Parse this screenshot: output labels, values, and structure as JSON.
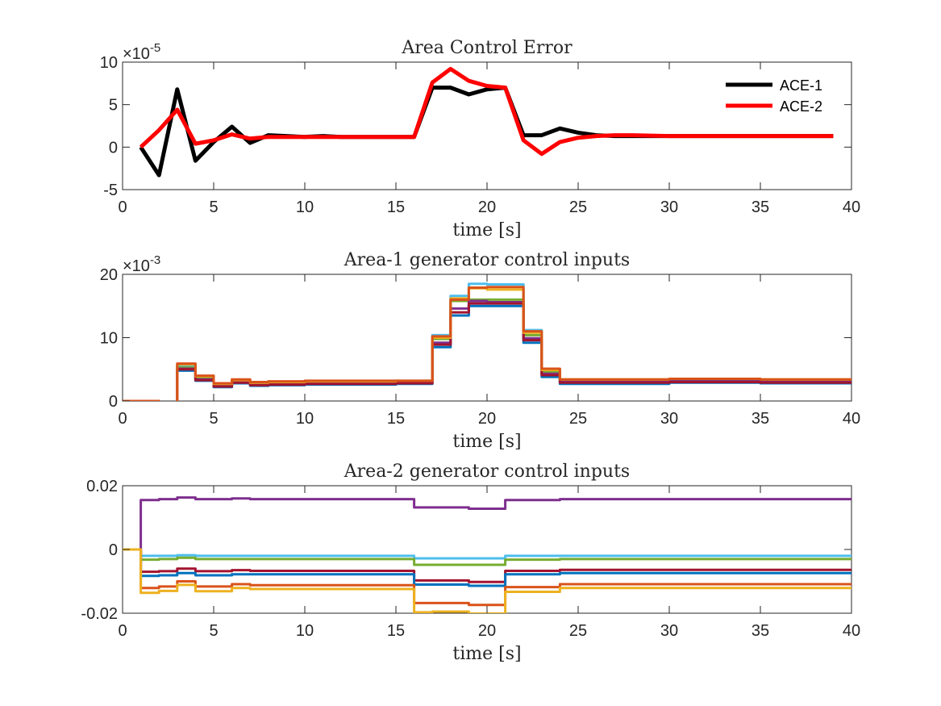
{
  "chart_data": [
    {
      "type": "line",
      "title": "Area Control Error",
      "xlabel": "time [s]",
      "ylabel": "",
      "xlim": [
        0,
        40
      ],
      "ylim": [
        -5,
        10
      ],
      "x_ticks": [
        0,
        5,
        10,
        15,
        20,
        25,
        30,
        35,
        40
      ],
      "y_ticks": [
        -5,
        0,
        5,
        10
      ],
      "y_exponent": "×10",
      "y_exponent_power": "-5",
      "legend": "top-right",
      "grid": false,
      "step": false,
      "series": [
        {
          "name": "ACE-1",
          "color": "#000000",
          "width": 5,
          "x": [
            1,
            2,
            3,
            4,
            5,
            6,
            7,
            8,
            9,
            10,
            11,
            12,
            13,
            14,
            15,
            16,
            17,
            18,
            19,
            20,
            21,
            22,
            23,
            24,
            25,
            26,
            27,
            28,
            30,
            35,
            39
          ],
          "y": [
            0,
            -3.3,
            6.8,
            -1.6,
            0.6,
            2.4,
            0.5,
            1.4,
            1.3,
            1.2,
            1.3,
            1.2,
            1.2,
            1.2,
            1.2,
            1.2,
            7.0,
            7.0,
            6.2,
            6.8,
            7.0,
            1.4,
            1.4,
            2.2,
            1.7,
            1.4,
            1.3,
            1.3,
            1.3,
            1.3,
            1.3
          ]
        },
        {
          "name": "ACE-2",
          "color": "#ff0000",
          "width": 5,
          "x": [
            1,
            2,
            3,
            4,
            5,
            6,
            7,
            8,
            9,
            10,
            11,
            12,
            13,
            14,
            15,
            16,
            17,
            18,
            19,
            20,
            21,
            22,
            23,
            24,
            25,
            26,
            27,
            28,
            30,
            35,
            39
          ],
          "y": [
            0,
            2.0,
            4.4,
            0.4,
            0.8,
            1.5,
            1.0,
            1.2,
            1.2,
            1.2,
            1.2,
            1.2,
            1.2,
            1.2,
            1.2,
            1.2,
            7.6,
            9.2,
            7.8,
            7.2,
            7.0,
            0.8,
            -0.8,
            0.6,
            1.1,
            1.3,
            1.4,
            1.4,
            1.3,
            1.3,
            1.3
          ]
        }
      ]
    },
    {
      "type": "line",
      "title": "Area-1 generator control inputs",
      "xlabel": "time [s]",
      "ylabel": "",
      "xlim": [
        0,
        40
      ],
      "ylim": [
        0,
        20
      ],
      "x_ticks": [
        0,
        5,
        10,
        15,
        20,
        25,
        30,
        35,
        40
      ],
      "y_ticks": [
        0,
        10,
        20
      ],
      "y_exponent": "×10",
      "y_exponent_power": "-3",
      "legend": "none",
      "grid": false,
      "step": true,
      "series": [
        {
          "color": "#0072bd",
          "width": 3,
          "x": [
            0,
            1,
            2,
            3,
            4,
            5,
            6,
            7,
            8,
            9,
            10,
            15,
            17,
            18,
            19,
            20,
            22,
            23,
            24,
            25,
            30,
            35,
            40
          ],
          "y": [
            0,
            0,
            -0.2,
            4.8,
            3.2,
            2.2,
            2.8,
            2.4,
            2.5,
            2.5,
            2.6,
            2.7,
            8.5,
            13.5,
            15.0,
            15.0,
            9.2,
            3.8,
            2.7,
            2.7,
            2.9,
            2.8,
            2.8
          ]
        },
        {
          "color": "#4dbeee",
          "width": 3,
          "x": [
            0,
            1,
            2,
            3,
            4,
            5,
            6,
            7,
            8,
            9,
            10,
            15,
            17,
            18,
            19,
            20,
            22,
            23,
            24,
            25,
            30,
            35,
            40
          ],
          "y": [
            0,
            0,
            -0.2,
            5.6,
            3.8,
            2.6,
            3.2,
            2.8,
            2.9,
            2.9,
            3.0,
            3.1,
            10.4,
            16.6,
            18.5,
            18.4,
            11.2,
            5.0,
            3.3,
            3.3,
            3.4,
            3.3,
            3.3
          ]
        },
        {
          "color": "#77ac30",
          "width": 3,
          "x": [
            0,
            1,
            2,
            3,
            4,
            5,
            6,
            7,
            8,
            9,
            10,
            15,
            17,
            18,
            19,
            20,
            22,
            23,
            24,
            25,
            30,
            35,
            40
          ],
          "y": [
            0,
            0,
            -0.2,
            5.3,
            3.6,
            2.5,
            3.1,
            2.7,
            2.8,
            2.8,
            2.9,
            3.0,
            9.8,
            15.8,
            16.0,
            16.0,
            10.4,
            4.6,
            3.1,
            3.1,
            3.2,
            3.1,
            3.1
          ]
        },
        {
          "color": "#7e2f8e",
          "width": 3,
          "x": [
            0,
            1,
            2,
            3,
            4,
            5,
            6,
            7,
            8,
            9,
            10,
            15,
            17,
            18,
            19,
            20,
            22,
            23,
            24,
            25,
            30,
            35,
            40
          ],
          "y": [
            0,
            0,
            -0.2,
            5.1,
            3.4,
            2.4,
            3.0,
            2.6,
            2.7,
            2.7,
            2.8,
            2.9,
            9.2,
            14.6,
            15.8,
            15.6,
            9.9,
            4.3,
            3.0,
            3.0,
            3.1,
            3.0,
            3.0
          ]
        },
        {
          "color": "#a2142f",
          "width": 3,
          "x": [
            0,
            1,
            2,
            3,
            4,
            5,
            6,
            7,
            8,
            9,
            10,
            15,
            17,
            18,
            19,
            20,
            22,
            23,
            24,
            25,
            30,
            35,
            40
          ],
          "y": [
            0,
            0,
            -0.2,
            5.0,
            3.3,
            2.3,
            2.9,
            2.5,
            2.6,
            2.6,
            2.7,
            2.8,
            8.9,
            14.0,
            15.4,
            15.4,
            9.6,
            4.1,
            2.9,
            2.9,
            3.0,
            2.9,
            2.9
          ]
        },
        {
          "color": "#edb120",
          "width": 3,
          "x": [
            0,
            1,
            2,
            3,
            4,
            5,
            6,
            7,
            8,
            9,
            10,
            15,
            17,
            18,
            19,
            20,
            22,
            23,
            24,
            25,
            30,
            35,
            40
          ],
          "y": [
            0,
            0,
            -0.2,
            5.8,
            3.9,
            2.7,
            3.3,
            2.9,
            3.0,
            3.0,
            3.1,
            3.2,
            10.0,
            16.2,
            17.8,
            17.6,
            10.8,
            4.9,
            3.4,
            3.4,
            3.5,
            3.4,
            3.4
          ]
        },
        {
          "color": "#d95319",
          "width": 3,
          "x": [
            0,
            1,
            2,
            3,
            4,
            5,
            6,
            7,
            8,
            9,
            10,
            15,
            17,
            18,
            19,
            20,
            22,
            23,
            24,
            25,
            30,
            35,
            40
          ],
          "y": [
            0,
            0,
            -0.2,
            5.9,
            4.0,
            2.8,
            3.4,
            3.0,
            3.1,
            3.1,
            3.2,
            3.2,
            10.2,
            16.0,
            17.9,
            18.0,
            11.0,
            5.1,
            3.4,
            3.4,
            3.5,
            3.4,
            3.4
          ]
        }
      ]
    },
    {
      "type": "line",
      "title": "Area-2 generator control inputs",
      "xlabel": "time [s]",
      "ylabel": "",
      "xlim": [
        0,
        40
      ],
      "ylim": [
        -0.02,
        0.02
      ],
      "x_ticks": [
        0,
        5,
        10,
        15,
        20,
        25,
        30,
        35,
        40
      ],
      "y_ticks": [
        -0.02,
        0,
        0.02
      ],
      "y_tick_labels": [
        "-0.02",
        "0",
        "0.02"
      ],
      "legend": "none",
      "grid": false,
      "step": true,
      "series": [
        {
          "color": "#7e2f8e",
          "width": 3,
          "x": [
            0,
            1,
            2,
            3,
            4,
            6,
            7,
            16,
            17,
            19,
            21,
            22,
            24,
            25,
            30,
            35,
            40
          ],
          "y": [
            0,
            0.0155,
            0.0158,
            0.0163,
            0.0158,
            0.016,
            0.0158,
            0.0132,
            0.0132,
            0.0128,
            0.0155,
            0.0155,
            0.0158,
            0.0158,
            0.0158,
            0.0158,
            0.0158
          ]
        },
        {
          "color": "#4dbeee",
          "width": 3,
          "x": [
            0,
            1,
            2,
            3,
            4,
            6,
            7,
            16,
            17,
            19,
            21,
            22,
            24,
            25,
            30,
            35,
            40
          ],
          "y": [
            0,
            -0.002,
            -0.002,
            -0.0018,
            -0.002,
            -0.002,
            -0.002,
            -0.0028,
            -0.0028,
            -0.0028,
            -0.002,
            -0.002,
            -0.002,
            -0.002,
            -0.002,
            -0.002,
            -0.002
          ]
        },
        {
          "color": "#77ac30",
          "width": 3,
          "x": [
            0,
            1,
            2,
            3,
            4,
            6,
            7,
            16,
            17,
            19,
            21,
            22,
            24,
            25,
            30,
            35,
            40
          ],
          "y": [
            0,
            -0.0032,
            -0.003,
            -0.0026,
            -0.003,
            -0.003,
            -0.003,
            -0.0048,
            -0.0048,
            -0.0048,
            -0.0032,
            -0.0032,
            -0.003,
            -0.003,
            -0.003,
            -0.003,
            -0.003
          ]
        },
        {
          "color": "#a2142f",
          "width": 3,
          "x": [
            0,
            1,
            2,
            3,
            4,
            6,
            7,
            16,
            17,
            19,
            21,
            22,
            24,
            25,
            30,
            35,
            40
          ],
          "y": [
            0,
            -0.007,
            -0.0068,
            -0.006,
            -0.0068,
            -0.0065,
            -0.0067,
            -0.0097,
            -0.0097,
            -0.0102,
            -0.0067,
            -0.0067,
            -0.0064,
            -0.0064,
            -0.0064,
            -0.0064,
            -0.0064
          ]
        },
        {
          "color": "#0072bd",
          "width": 3,
          "x": [
            0,
            1,
            2,
            3,
            4,
            6,
            7,
            16,
            17,
            19,
            21,
            22,
            24,
            25,
            30,
            35,
            40
          ],
          "y": [
            0,
            -0.0083,
            -0.0081,
            -0.0074,
            -0.0081,
            -0.0078,
            -0.0078,
            -0.011,
            -0.011,
            -0.0114,
            -0.0078,
            -0.0078,
            -0.0074,
            -0.0074,
            -0.0074,
            -0.0074,
            -0.0074
          ]
        },
        {
          "color": "#d95319",
          "width": 3,
          "x": [
            0,
            1,
            2,
            3,
            4,
            6,
            7,
            16,
            17,
            19,
            21,
            22,
            24,
            25,
            30,
            35,
            40
          ],
          "y": [
            0,
            -0.0121,
            -0.0116,
            -0.01,
            -0.0116,
            -0.0109,
            -0.0112,
            -0.0168,
            -0.0168,
            -0.0174,
            -0.0118,
            -0.0118,
            -0.0109,
            -0.0109,
            -0.0109,
            -0.0109,
            -0.0109
          ]
        },
        {
          "color": "#edb120",
          "width": 3,
          "x": [
            0,
            1,
            2,
            3,
            4,
            6,
            7,
            16,
            17,
            19,
            21,
            22,
            24,
            25,
            30,
            35,
            40
          ],
          "y": [
            0,
            -0.0136,
            -0.013,
            -0.0111,
            -0.0131,
            -0.0121,
            -0.0124,
            -0.0197,
            -0.0195,
            -0.0201,
            -0.0133,
            -0.0133,
            -0.0121,
            -0.0121,
            -0.0121,
            -0.0121,
            -0.0121
          ]
        }
      ]
    }
  ]
}
